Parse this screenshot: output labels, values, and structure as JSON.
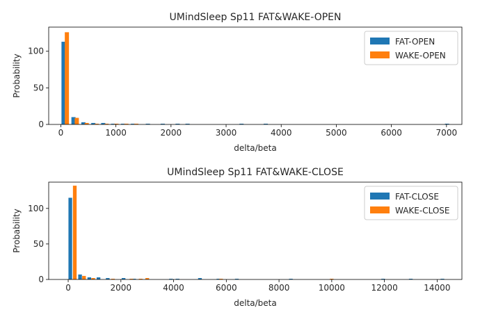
{
  "chart_data": [
    {
      "type": "bar",
      "title": "UMindSleep Sp11 FAT&WAKE-OPEN",
      "xlabel": "delta/beta",
      "ylabel": "Probability",
      "xlim": [
        -220,
        7280
      ],
      "ylim": [
        0,
        133
      ],
      "xticks": [
        0,
        1000,
        2000,
        3000,
        4000,
        5000,
        6000,
        7000
      ],
      "xtick_labels": [
        "0",
        "1000",
        "2000",
        "3000",
        "4000",
        "5000",
        "6000",
        "7000"
      ],
      "yticks": [
        0,
        50,
        100
      ],
      "ytick_labels": [
        "0",
        "50",
        "100"
      ],
      "legend_position": "top-right",
      "series": [
        {
          "name": "FAT-OPEN",
          "color": "#1f77b4",
          "points": [
            {
              "x": 50,
              "y": 113
            },
            {
              "x": 230,
              "y": 10
            },
            {
              "x": 410,
              "y": 3
            },
            {
              "x": 590,
              "y": 2
            },
            {
              "x": 770,
              "y": 2
            },
            {
              "x": 950,
              "y": 1
            },
            {
              "x": 1130,
              "y": 1
            },
            {
              "x": 1310,
              "y": 1
            },
            {
              "x": 1580,
              "y": 1
            },
            {
              "x": 1850,
              "y": 1
            },
            {
              "x": 2120,
              "y": 1
            },
            {
              "x": 2300,
              "y": 1
            },
            {
              "x": 3280,
              "y": 1
            },
            {
              "x": 3720,
              "y": 1
            },
            {
              "x": 7010,
              "y": 1
            }
          ]
        },
        {
          "name": "WAKE-OPEN",
          "color": "#ff7f0e",
          "points": [
            {
              "x": 110,
              "y": 126
            },
            {
              "x": 290,
              "y": 9
            },
            {
              "x": 470,
              "y": 2
            },
            {
              "x": 650,
              "y": 1
            },
            {
              "x": 830,
              "y": 1
            },
            {
              "x": 1010,
              "y": 1
            },
            {
              "x": 1190,
              "y": 1
            },
            {
              "x": 1370,
              "y": 1
            }
          ]
        }
      ]
    },
    {
      "type": "bar",
      "title": "UMindSleep Sp11 FAT&WAKE-CLOSE",
      "xlabel": "delta/beta",
      "ylabel": "Probability",
      "xlim": [
        -740,
        14940
      ],
      "ylim": [
        0,
        137
      ],
      "xticks": [
        0,
        2000,
        4000,
        6000,
        8000,
        10000,
        12000,
        14000
      ],
      "xtick_labels": [
        "0",
        "2000",
        "4000",
        "6000",
        "8000",
        "10000",
        "12000",
        "14000"
      ],
      "yticks": [
        0,
        50,
        100
      ],
      "ytick_labels": [
        "0",
        "50",
        "100"
      ],
      "legend_position": "top-right",
      "series": [
        {
          "name": "FAT-CLOSE",
          "color": "#1f77b4",
          "points": [
            {
              "x": 80,
              "y": 115
            },
            {
              "x": 450,
              "y": 7
            },
            {
              "x": 800,
              "y": 3
            },
            {
              "x": 1150,
              "y": 3
            },
            {
              "x": 1500,
              "y": 2
            },
            {
              "x": 2100,
              "y": 2
            },
            {
              "x": 2500,
              "y": 1
            },
            {
              "x": 3900,
              "y": 1
            },
            {
              "x": 4150,
              "y": 1
            },
            {
              "x": 5000,
              "y": 2
            },
            {
              "x": 5700,
              "y": 1
            },
            {
              "x": 6400,
              "y": 1
            },
            {
              "x": 8450,
              "y": 1
            },
            {
              "x": 11950,
              "y": 1
            },
            {
              "x": 13000,
              "y": 1
            },
            {
              "x": 14200,
              "y": 1
            }
          ]
        },
        {
          "name": "WAKE-CLOSE",
          "color": "#ff7f0e",
          "points": [
            {
              "x": 250,
              "y": 132
            },
            {
              "x": 600,
              "y": 5
            },
            {
              "x": 950,
              "y": 2
            },
            {
              "x": 1700,
              "y": 1
            },
            {
              "x": 2400,
              "y": 1
            },
            {
              "x": 2750,
              "y": 1
            },
            {
              "x": 3000,
              "y": 2
            },
            {
              "x": 5800,
              "y": 1
            },
            {
              "x": 10000,
              "y": 1
            }
          ]
        }
      ]
    }
  ]
}
